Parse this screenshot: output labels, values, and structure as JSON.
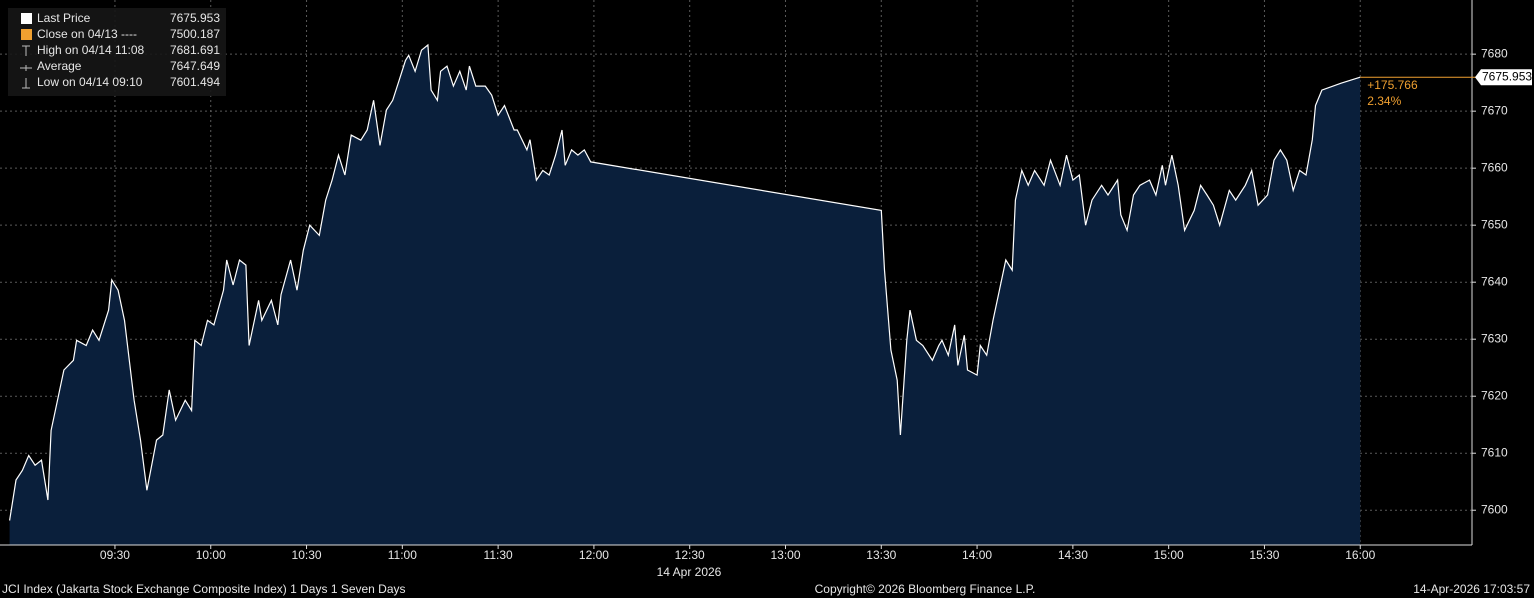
{
  "chart_data": {
    "type": "line",
    "legend": [
      {
        "label": "Last Price",
        "value": 7675.953
      },
      {
        "label": "Close on 04/13 ----",
        "value": 7500.187
      },
      {
        "label": "High on 04/14 11:08",
        "value": 7681.691
      },
      {
        "label": "Average",
        "value": 7647.649
      },
      {
        "label": "Low on 04/14 09:10",
        "value": 7601.494
      }
    ],
    "annotations": [
      "+175.766",
      "2.34%"
    ],
    "date_label": "14 Apr 2026",
    "footer": [
      "JCI Index (Jakarta Stock Exchange Composite Index) 1 Days 1 Seven Days",
      "Copyright© 2026 Bloomberg Finance L.P.",
      "14-Apr-2026 17:03:57"
    ],
    "xlim": [
      534,
      995
    ],
    "xticks": [
      {
        "value": 570,
        "label": "09:30"
      },
      {
        "value": 600,
        "label": "10:00"
      },
      {
        "value": 630,
        "label": "10:30"
      },
      {
        "value": 660,
        "label": "11:00"
      },
      {
        "value": 690,
        "label": "11:30"
      },
      {
        "value": 720,
        "label": "12:00"
      },
      {
        "value": 750,
        "label": "12:30"
      },
      {
        "value": 780,
        "label": "13:00"
      },
      {
        "value": 810,
        "label": "13:30"
      },
      {
        "value": 840,
        "label": "14:00"
      },
      {
        "value": 870,
        "label": "14:30"
      },
      {
        "value": 900,
        "label": "15:00"
      },
      {
        "value": 930,
        "label": "15:30"
      },
      {
        "value": 960,
        "label": "16:00"
      }
    ],
    "ylim": [
      7593.9,
      7689.5
    ],
    "yticks": [
      7600,
      7610,
      7620,
      7630,
      7640,
      7650,
      7660,
      7670,
      7680
    ],
    "grid": true,
    "x": [
      537,
      539,
      541,
      543,
      545,
      547,
      549,
      550,
      552,
      554,
      557,
      558,
      561,
      563,
      565,
      568,
      569,
      571,
      573,
      576,
      578,
      580,
      583,
      585,
      587,
      589,
      592,
      594,
      595,
      597,
      599,
      601,
      604,
      605,
      607,
      609,
      611,
      612,
      615,
      616,
      619,
      621,
      622,
      625,
      627,
      629,
      631,
      634,
      636,
      638,
      640,
      642,
      644,
      647,
      649,
      651,
      653,
      655,
      657,
      659,
      661,
      662,
      664,
      666,
      668,
      669,
      671,
      672,
      674,
      676,
      678,
      680,
      681,
      683,
      686,
      688,
      690,
      692,
      695,
      696,
      699,
      700,
      702,
      704,
      706,
      708,
      710,
      711,
      713,
      715,
      717,
      719,
      810,
      811,
      813,
      815,
      816,
      818,
      819,
      821,
      823,
      826,
      828,
      829,
      831,
      833,
      834,
      836,
      837,
      840,
      841,
      843,
      845,
      847,
      849,
      851,
      852,
      854,
      856,
      858,
      861,
      863,
      866,
      868,
      870,
      872,
      874,
      876,
      879,
      881,
      884,
      885,
      887,
      889,
      891,
      894,
      896,
      898,
      899,
      901,
      903,
      905,
      908,
      910,
      912,
      914,
      916,
      919,
      921,
      924,
      926,
      928,
      931,
      933,
      935,
      937,
      939,
      941,
      943,
      945,
      946,
      948,
      954,
      960
    ],
    "series": [
      {
        "name": "Last Price",
        "color": "#ffffff",
        "fill": "#0a1f3b",
        "values": [
          7598.2,
          7605.3,
          7607,
          7609.6,
          7607.9,
          7608.8,
          7601.8,
          7614,
          7619.3,
          7624.6,
          7626.3,
          7629.8,
          7628.9,
          7631.6,
          7629.8,
          7635.1,
          7640.4,
          7638.6,
          7633.3,
          7619.3,
          7612.3,
          7603.5,
          7612.3,
          7613.2,
          7621.1,
          7615.8,
          7619.3,
          7617.5,
          7629.8,
          7628.9,
          7633.3,
          7632.5,
          7638.6,
          7643.9,
          7639.5,
          7643.9,
          7643,
          7628.9,
          7636.8,
          7633.3,
          7636.8,
          7632.5,
          7637.8,
          7643.9,
          7638.6,
          7645.6,
          7650,
          7648.2,
          7654.4,
          7657.9,
          7662.3,
          7658.8,
          7665.8,
          7664.9,
          7666.7,
          7671.9,
          7664,
          7670.2,
          7671.9,
          7675.4,
          7678.9,
          7679.8,
          7677,
          7680.7,
          7681.6,
          7673.7,
          7671.9,
          7677,
          7677.9,
          7674.4,
          7677,
          7673.7,
          7677.9,
          7674.4,
          7674.4,
          7672.8,
          7669.3,
          7671,
          7666.7,
          7666.7,
          7663.2,
          7665,
          7657.9,
          7659.6,
          7658.8,
          7662.3,
          7666.7,
          7660.5,
          7663.2,
          7662.3,
          7663.2,
          7661.1,
          7652.6,
          7642.1,
          7628.1,
          7622.8,
          7613.2,
          7629.8,
          7635.1,
          7629.8,
          7628.9,
          7626.3,
          7628.9,
          7629.8,
          7627.2,
          7632.5,
          7625.4,
          7630.7,
          7624.6,
          7623.7,
          7628.9,
          7627.2,
          7633.3,
          7638.6,
          7643.9,
          7642.1,
          7654.4,
          7659.6,
          7657,
          7659.6,
          7657,
          7661.4,
          7657,
          7662.3,
          7657.9,
          7658.8,
          7650,
          7654.4,
          7657,
          7655.3,
          7657.9,
          7651.8,
          7649.1,
          7655.3,
          7657,
          7657.9,
          7655.3,
          7660.5,
          7657,
          7662.3,
          7657,
          7649.1,
          7652.6,
          7657,
          7655.3,
          7653.5,
          7650,
          7656.1,
          7654.4,
          7657,
          7659.6,
          7653.5,
          7655.3,
          7661.4,
          7663.2,
          7661.4,
          7656.1,
          7659.6,
          7658.8,
          7665,
          7671,
          7673.7,
          7674.9,
          7675.953
        ]
      }
    ],
    "accent_color": "#f0a030"
  }
}
